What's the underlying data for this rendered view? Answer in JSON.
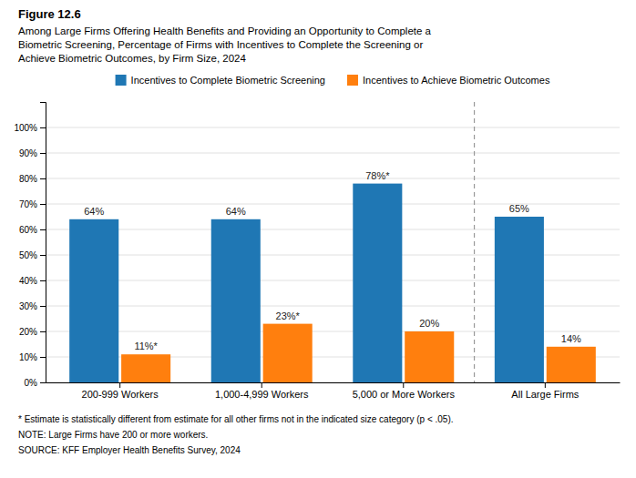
{
  "chart_data": {
    "type": "bar",
    "title": "Figure 12.6",
    "subtitle": "Among Large Firms Offering Health Benefits and Providing an Opportunity to Complete a\nBiometric Screening, Percentage of Firms with Incentives to Complete the Screening or\nAchieve Biometric Outcomes, by Firm Size, 2024",
    "categories": [
      "200-999 Workers",
      "1,000-4,999 Workers",
      "5,000 or More Workers",
      "All Large Firms"
    ],
    "series": [
      {
        "name": "Incentives to Complete Biometric Screening",
        "values": [
          64,
          64,
          78,
          65
        ],
        "value_labels": [
          "64%",
          "64%",
          "78%*",
          "65%"
        ]
      },
      {
        "name": "Incentives to Achieve Biometric Outcomes",
        "values": [
          11,
          23,
          20,
          14
        ],
        "value_labels": [
          "11%*",
          "23%*",
          "20%",
          "14%"
        ]
      }
    ],
    "ylim": [
      0,
      110
    ],
    "yticks": [
      {
        "value": 0,
        "label": "0%"
      },
      {
        "value": 10,
        "label": "10%"
      },
      {
        "value": 20,
        "label": "20%"
      },
      {
        "value": 30,
        "label": "30%"
      },
      {
        "value": 40,
        "label": "40%"
      },
      {
        "value": 50,
        "label": "50%"
      },
      {
        "value": 60,
        "label": "60%"
      },
      {
        "value": 70,
        "label": "70%"
      },
      {
        "value": 80,
        "label": "80%"
      },
      {
        "value": 90,
        "label": "90%"
      },
      {
        "value": 100,
        "label": "100%"
      }
    ],
    "grid": true,
    "legend": "top",
    "data_labels": true,
    "annotations": [
      "* Estimate is statistically different from estimate for all other firms not in the indicated size category (p < .05).",
      "NOTE: Large Firms have 200 or more workers.",
      "SOURCE: KFF Employer Health Benefits Survey, 2024"
    ]
  }
}
